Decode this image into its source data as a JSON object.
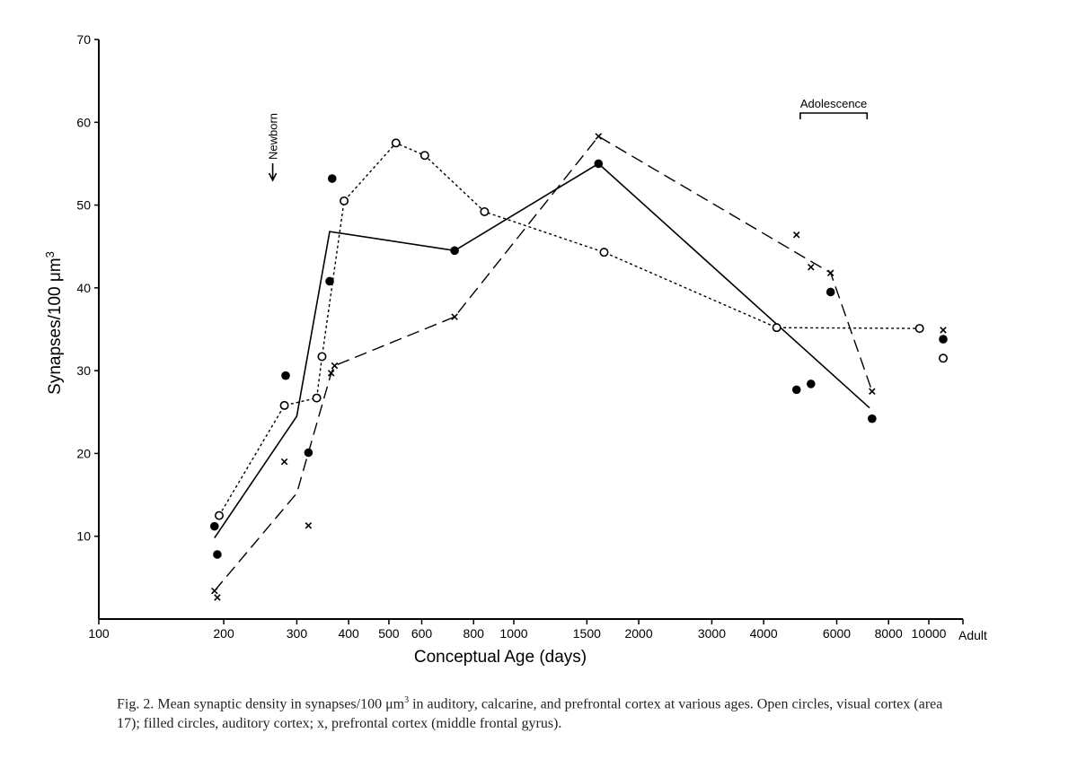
{
  "chart_data": {
    "type": "scatter",
    "xlabel": "Conceptual Age (days)",
    "ylabel": "Synapses/100 μm",
    "ylabel_sup": "3",
    "x_scale": "log",
    "x_ticks": [
      {
        "value": 100,
        "label": "100"
      },
      {
        "value": 200,
        "label": "200"
      },
      {
        "value": 300,
        "label": "300"
      },
      {
        "value": 400,
        "label": "400"
      },
      {
        "value": 500,
        "label": "500"
      },
      {
        "value": 600,
        "label": "600"
      },
      {
        "value": 800,
        "label": "800"
      },
      {
        "value": 1000,
        "label": "1000"
      },
      {
        "value": 1500,
        "label": "1500"
      },
      {
        "value": 2000,
        "label": "2000"
      },
      {
        "value": 3000,
        "label": "3000"
      },
      {
        "value": 4000,
        "label": "4000"
      },
      {
        "value": 6000,
        "label": "6000"
      },
      {
        "value": 8000,
        "label": "8000"
      },
      {
        "value": 10000,
        "label": "10000"
      }
    ],
    "x_end_label": "Adult",
    "ylim": [
      0,
      70
    ],
    "y_ticks": [
      10,
      20,
      30,
      40,
      50,
      60,
      70
    ],
    "annotations": {
      "newborn": {
        "text": "Newborn",
        "x": 280
      },
      "adolescence": {
        "text": "Adolescence",
        "x_start": 4900,
        "x_end": 7100
      }
    },
    "series": [
      {
        "marker": "open-circle",
        "line": "dotted",
        "points": [
          [
            195,
            12.5
          ],
          [
            280,
            25.8
          ],
          [
            335,
            26.7
          ],
          [
            345,
            31.7
          ],
          [
            390,
            50.5
          ],
          [
            520,
            57.5
          ],
          [
            610,
            56
          ],
          [
            850,
            49.2
          ],
          [
            1650,
            44.3
          ],
          [
            4300,
            35.2
          ],
          [
            9500,
            35.1
          ],
          [
            "Adult",
            31.5
          ]
        ],
        "line_points": [
          [
            195,
            12.5
          ],
          [
            280,
            25.8
          ],
          [
            335,
            26.7
          ],
          [
            345,
            31.7
          ],
          [
            390,
            50.5
          ],
          [
            520,
            57.5
          ],
          [
            610,
            56
          ],
          [
            850,
            49.2
          ],
          [
            1650,
            44.3
          ],
          [
            4300,
            35.2
          ],
          [
            9500,
            35.1
          ]
        ]
      },
      {
        "marker": "filled-circle",
        "line": "solid",
        "points": [
          [
            190,
            11.2
          ],
          [
            193,
            7.8
          ],
          [
            282,
            29.4
          ],
          [
            320,
            20.1
          ],
          [
            360,
            40.8
          ],
          [
            365,
            53.2
          ],
          [
            720,
            44.5
          ],
          [
            1600,
            55
          ],
          [
            4800,
            27.7
          ],
          [
            5200,
            28.4
          ],
          [
            5800,
            39.5
          ],
          [
            7300,
            24.2
          ],
          [
            "Adult",
            33.8
          ]
        ],
        "line_points": [
          [
            190,
            9.8
          ],
          [
            300,
            24.5
          ],
          [
            360,
            46.8
          ],
          [
            720,
            44.5
          ],
          [
            1600,
            55
          ],
          [
            7200,
            25.5
          ]
        ]
      },
      {
        "marker": "x",
        "line": "dashed",
        "points": [
          [
            190,
            3.4
          ],
          [
            193,
            2.6
          ],
          [
            280,
            19
          ],
          [
            320,
            11.3
          ],
          [
            363,
            29.7
          ],
          [
            370,
            30.6
          ],
          [
            720,
            36.5
          ],
          [
            1600,
            58.3
          ],
          [
            4800,
            46.4
          ],
          [
            5200,
            42.5
          ],
          [
            5800,
            41.8
          ],
          [
            7300,
            27.5
          ],
          [
            "Adult",
            34.9
          ]
        ],
        "line_points": [
          [
            190,
            3.4
          ],
          [
            300,
            15.2
          ],
          [
            363,
            29.7
          ],
          [
            370,
            30.6
          ],
          [
            720,
            36.5
          ],
          [
            1600,
            58.3
          ],
          [
            5800,
            41.8
          ],
          [
            7300,
            27.5
          ]
        ]
      }
    ]
  },
  "caption": {
    "lead": "Fig. 2.   Mean synaptic density in synapses/100 μm",
    "lead_sup": "3",
    "rest": " in auditory, calcarine, and prefrontal cortex at various ages. Open circles, visual cortex (area 17); filled circles, auditory cortex; x, prefrontal cortex (middle frontal gyrus)."
  }
}
